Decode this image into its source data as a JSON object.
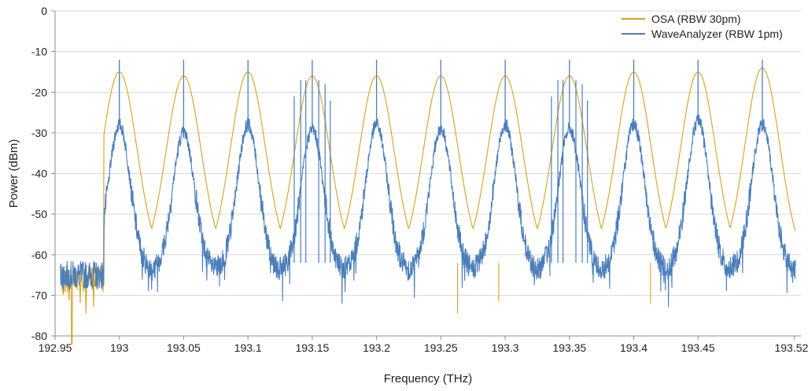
{
  "chart_data": {
    "type": "line",
    "title": "",
    "xlabel": "Frequency (THz)",
    "ylabel": "Power (dBm)",
    "xlim": [
      192.95,
      193.53
    ],
    "ylim": [
      -80,
      0
    ],
    "grid": "horizontal",
    "legend_position": "top-right",
    "x_ticks": [
      192.95,
      193,
      193.05,
      193.1,
      193.15,
      193.2,
      193.25,
      193.3,
      193.35,
      193.4,
      193.45,
      193.525
    ],
    "x_tick_labels": [
      "192.95",
      "193",
      "193.05",
      "193.1",
      "193.15",
      "193.2",
      "193.25",
      "193.3",
      "193.35",
      "193.4",
      "193.45",
      "193.525"
    ],
    "y_ticks": [
      -80,
      -70,
      -60,
      -50,
      -40,
      -30,
      -20,
      -10,
      0
    ],
    "y_tick_labels": [
      "-80",
      "-70",
      "-60",
      "-50",
      "-40",
      "-30",
      "-20",
      "-10",
      "0"
    ],
    "channel_centers": [
      193.0,
      193.05,
      193.1,
      193.15,
      193.2,
      193.25,
      193.3,
      193.35,
      193.4,
      193.45,
      193.5
    ],
    "series": [
      {
        "name": "OSA (RBW 30pm)",
        "color": "#D4A21E",
        "peak_dbm": [
          -15,
          -16,
          -15,
          -16,
          -16,
          -16,
          -16,
          -16,
          -15,
          -15,
          -14
        ],
        "trough_dbm": -62,
        "noise_floor_dbm": -66,
        "start_frequency_thz": 192.954,
        "dip_frequency_thz": 192.963,
        "dip_dbm": -82,
        "dip_marks": [
          {
            "x": 193.263,
            "y": -74.5
          },
          {
            "x": 193.295,
            "y": -71.5
          },
          {
            "x": 193.413,
            "y": -72
          }
        ]
      },
      {
        "name": "WaveAnalyzer (RBW 1pm)",
        "color": "#4A7EBB",
        "peak_dbm": [
          -28,
          -30,
          -28,
          -29,
          -28,
          -29,
          -28,
          -29,
          -28,
          -27,
          -28
        ],
        "spike_dbm": [
          -12,
          -12,
          -12,
          -12,
          -12,
          -12,
          -12,
          -12,
          -12,
          -12,
          -12
        ],
        "trough_dbm": -64,
        "noise_floor_dbm": -65,
        "start_frequency_thz": 192.954,
        "end_frequency_thz": 193.526,
        "extra_spikes": [
          {
            "x": 193.136,
            "y": -21
          },
          {
            "x": 193.141,
            "y": -17
          },
          {
            "x": 193.145,
            "y": -17
          },
          {
            "x": 193.155,
            "y": -17
          },
          {
            "x": 193.16,
            "y": -18
          },
          {
            "x": 193.164,
            "y": -22
          },
          {
            "x": 193.336,
            "y": -21
          },
          {
            "x": 193.341,
            "y": -17
          },
          {
            "x": 193.345,
            "y": -17
          },
          {
            "x": 193.355,
            "y": -17
          },
          {
            "x": 193.36,
            "y": -18
          },
          {
            "x": 193.364,
            "y": -22
          }
        ]
      }
    ]
  }
}
